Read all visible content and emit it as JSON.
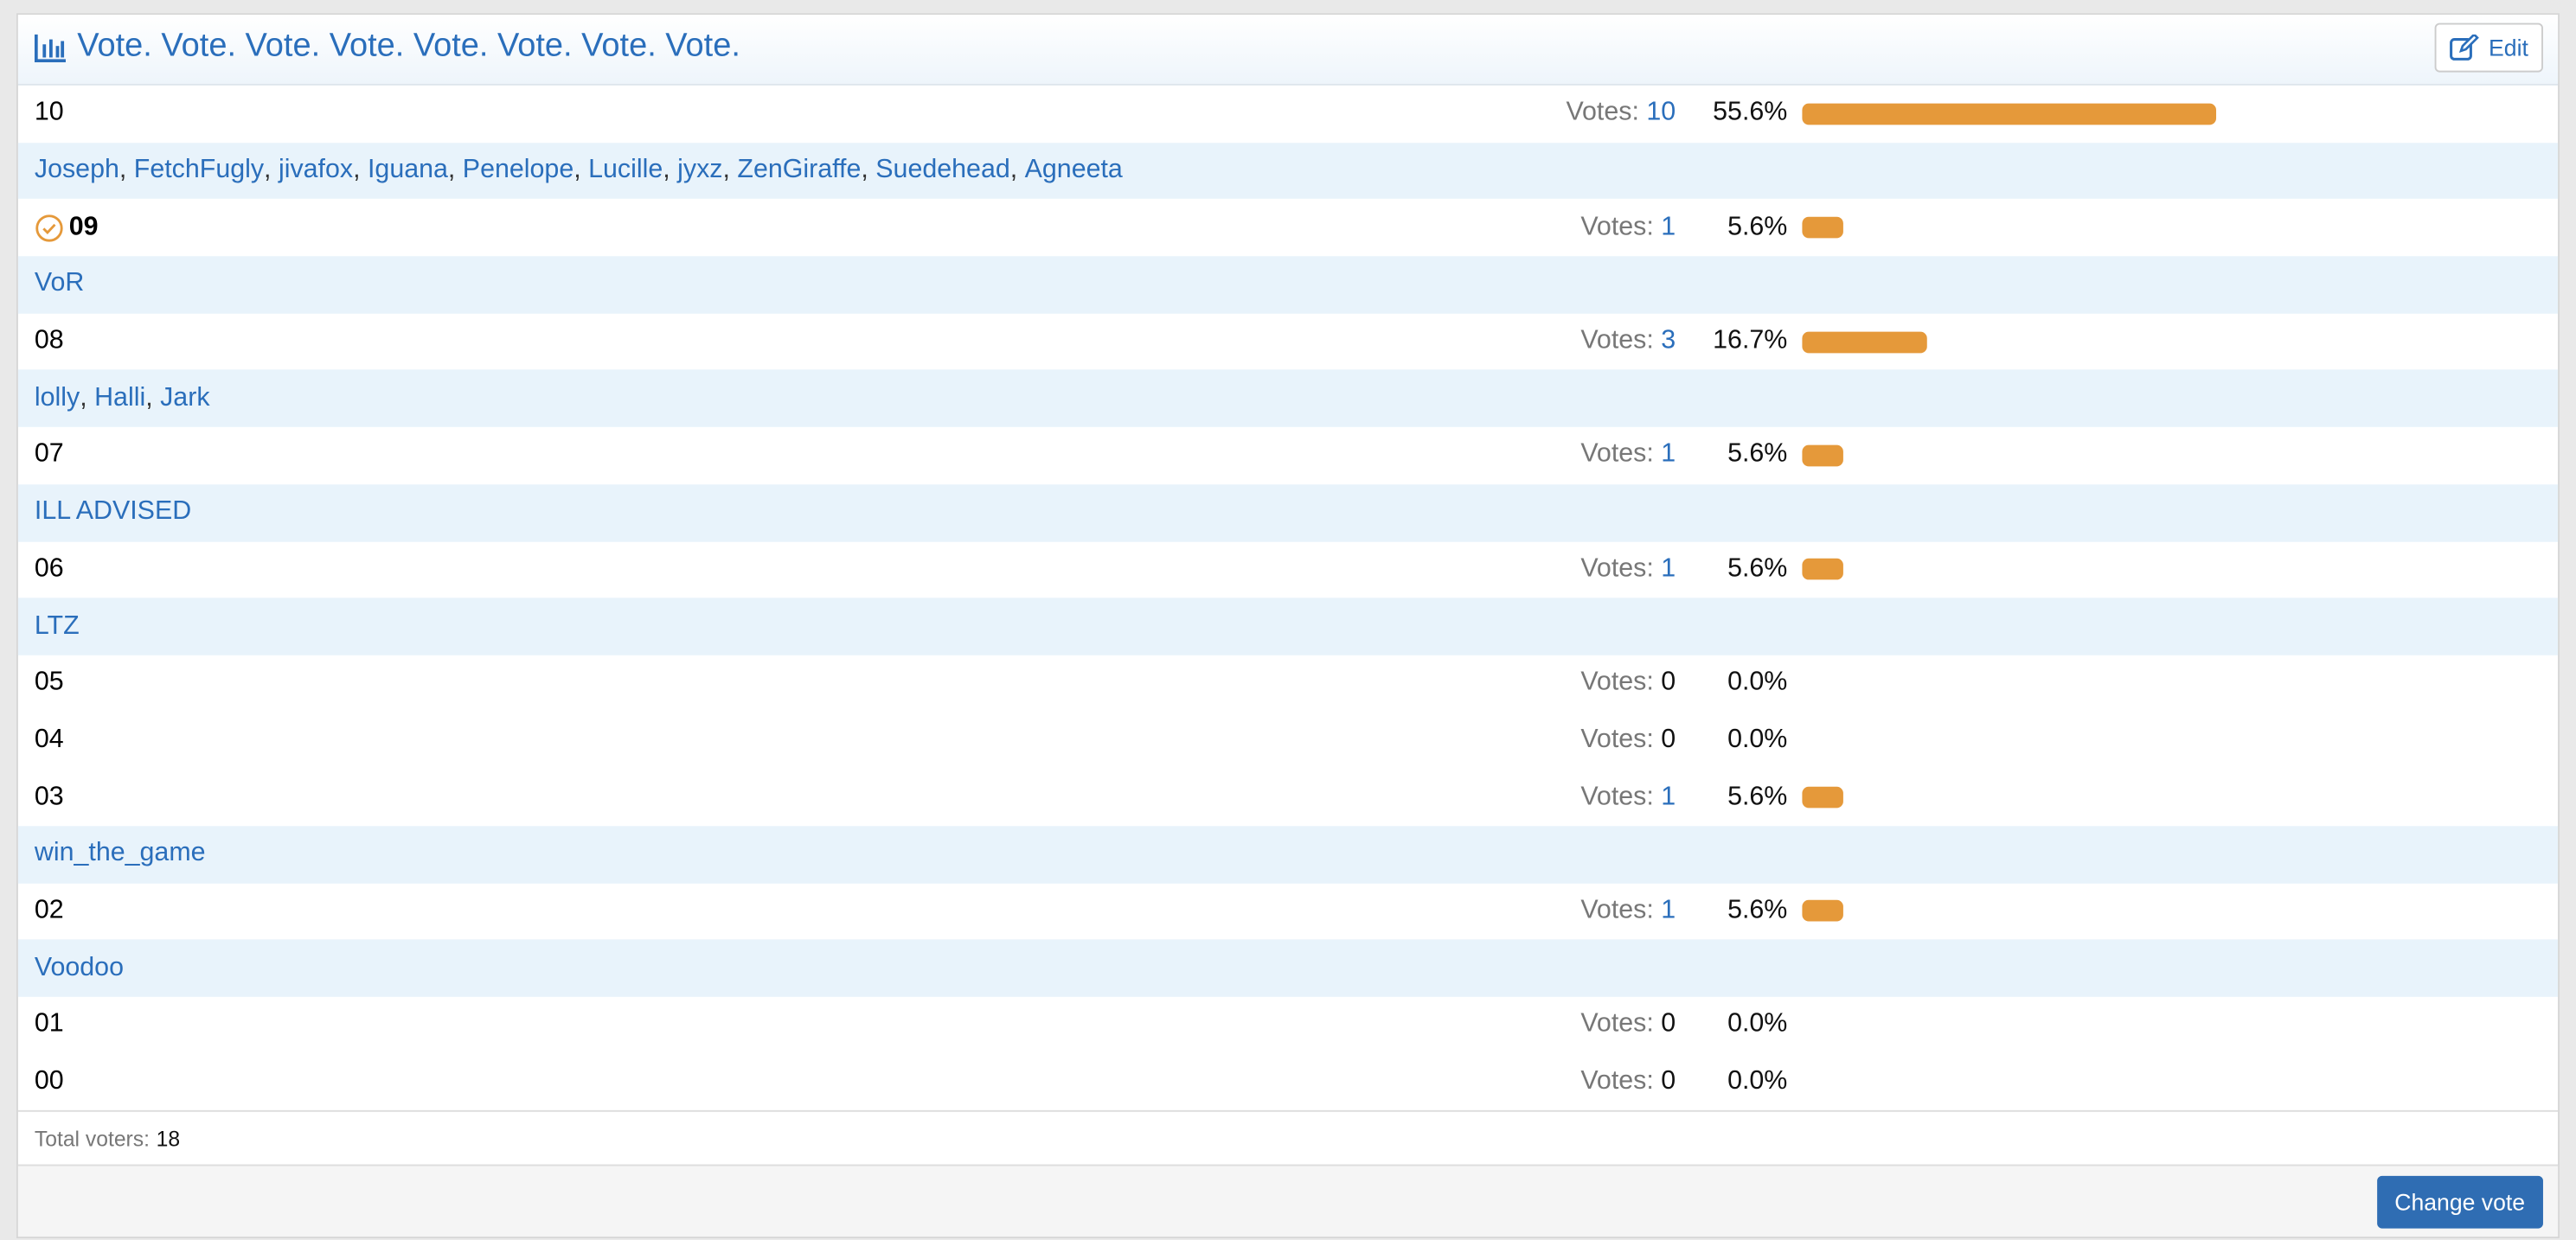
{
  "poll": {
    "title": "Vote. Vote. Vote. Vote. Vote. Vote. Vote. Vote.",
    "edit_label": "Edit",
    "votes_label": "Votes:",
    "options": [
      {
        "label": "10",
        "votes": 10,
        "percent": 55.6,
        "percent_label": "55.6%",
        "voters": [
          "Joseph",
          "FetchFugly",
          "jivafox",
          "Iguana",
          "Penelope",
          "Lucille",
          "jyxz",
          "ZenGiraffe",
          "Suedehead",
          "Agneeta"
        ]
      },
      {
        "label": "09",
        "selected": true,
        "votes": 1,
        "percent": 5.6,
        "percent_label": "5.6%",
        "voters": [
          "VoR"
        ]
      },
      {
        "label": "08",
        "votes": 3,
        "percent": 16.7,
        "percent_label": "16.7%",
        "voters": [
          "lolly",
          "Halli",
          "Jark"
        ]
      },
      {
        "label": "07",
        "votes": 1,
        "percent": 5.6,
        "percent_label": "5.6%",
        "voters": [
          "ILL ADVISED"
        ]
      },
      {
        "label": "06",
        "votes": 1,
        "percent": 5.6,
        "percent_label": "5.6%",
        "voters": [
          "LTZ"
        ]
      },
      {
        "label": "05",
        "votes": 0,
        "percent": 0.0,
        "percent_label": "0.0%",
        "voters": []
      },
      {
        "label": "04",
        "votes": 0,
        "percent": 0.0,
        "percent_label": "0.0%",
        "voters": []
      },
      {
        "label": "03",
        "votes": 1,
        "percent": 5.6,
        "percent_label": "5.6%",
        "voters": [
          "win_the_game"
        ]
      },
      {
        "label": "02",
        "votes": 1,
        "percent": 5.6,
        "percent_label": "5.6%",
        "voters": [
          "Voodoo"
        ]
      },
      {
        "label": "01",
        "votes": 0,
        "percent": 0.0,
        "percent_label": "0.0%",
        "voters": []
      },
      {
        "label": "00",
        "votes": 0,
        "percent": 0.0,
        "percent_label": "0.0%",
        "voters": []
      }
    ],
    "total_label": "Total voters:",
    "total": 18,
    "button_label": "Change vote"
  }
}
